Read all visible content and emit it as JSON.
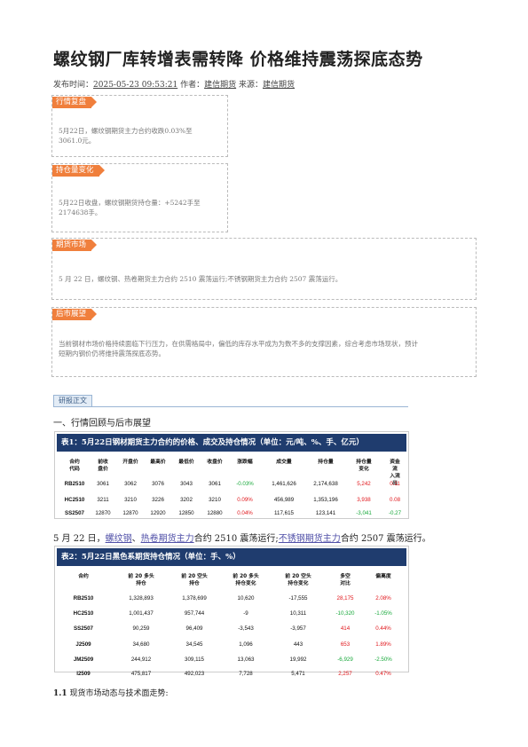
{
  "article": {
    "title": "螺纹钢厂库转增表需转降 价格维持震荡探底态势",
    "meta_prefix": "发布时间：",
    "publish_time": "2025-05-23 09:53:21",
    "author_label": "作者：",
    "author": "建信期货",
    "source_label": "来源：",
    "source": "建信期货"
  },
  "sections": [
    {
      "tag": "行情复盘",
      "lines": [
        "5月22日，螺纹钢期货主力合约收跌0.03%至",
        "3061.0元。"
      ]
    },
    {
      "tag": "持仓量变化",
      "lines": [
        "5月22日收盘，螺纹钢期货持仓量：+5242手至",
        "2174638手。"
      ]
    },
    {
      "tag": "期货市场",
      "lines": [
        "5 月 22 日，螺纹钢、热卷期货主力合约 2510 震荡运行;不锈钢期货主力合约 2507 震荡运行。"
      ]
    },
    {
      "tag": "后市展望",
      "lines": [
        "当前钢材市场价格持续面临下行压力，在供需格局中，偏低的库存水平成为为数不多的支撑因素，综合考虑市场现状，预计",
        "短期内钢价仍将维持震荡探底态势。"
      ]
    }
  ],
  "report_label": "研报正文",
  "heading_1": "一、行情回顾与后市展望",
  "table1": {
    "title": "表1：5月22日钢材期货主力合约的价格、成交及持仓情况（单位：元/吨、%、手、亿元）",
    "headers": [
      "合约\n代码",
      "前收\n盘价",
      "开盘价",
      "最高价",
      "最低价",
      "收盘价",
      "涨跌幅",
      "成交量",
      "持仓量",
      "持仓量\n变化",
      "资金流\n入流出"
    ],
    "rows": [
      [
        "RB2510",
        "3061",
        "3062",
        "3076",
        "3043",
        "3061",
        "-0.03%",
        "1,461,626",
        "2,174,638",
        "5,242",
        "0.11"
      ],
      [
        "HC2510",
        "3211",
        "3210",
        "3226",
        "3202",
        "3210",
        "0.09%",
        "456,989",
        "1,353,196",
        "3,938",
        "0.08"
      ],
      [
        "SS2507",
        "12870",
        "12870",
        "12920",
        "12850",
        "12880",
        "0.04%",
        "117,615",
        "123,141",
        "-3,041",
        "-0.27"
      ]
    ]
  },
  "sentence": {
    "prefix": "5 月 22 日，",
    "link1": "螺纹钢",
    "sep1": "、",
    "link2": "热卷期货主力",
    "mid": "合约 2510 震荡运行;",
    "link3": "不锈钢期货主力",
    "suffix": "合约 2507 震荡运行。"
  },
  "table2": {
    "title": "表2：5月22日黑色系期货持仓情况（单位：手、%）",
    "headers": [
      "合约",
      "前 20 多头\n持仓",
      "前 20 空头\n持仓",
      "前 20 多头\n持仓变化",
      "前 20 空头\n持仓变化",
      "多空\n对比",
      "偏离度"
    ],
    "rows": [
      [
        "RB2510",
        "1,328,893",
        "1,378,699",
        "10,620",
        "-17,555",
        "28,175",
        "2.08%"
      ],
      [
        "HC2510",
        "1,001,437",
        "957,744",
        "-9",
        "10,311",
        "-10,320",
        "-1.05%"
      ],
      [
        "SS2507",
        "90,259",
        "96,409",
        "-3,543",
        "-3,957",
        "414",
        "0.44%"
      ],
      [
        "J2509",
        "34,680",
        "34,545",
        "1,096",
        "443",
        "653",
        "1.89%"
      ],
      [
        "JM2509",
        "244,912",
        "309,115",
        "13,063",
        "19,992",
        "-6,929",
        "-2.50%"
      ],
      [
        "I2509",
        "475,817",
        "492,023",
        "7,728",
        "5,471",
        "2,257",
        "0.47%"
      ]
    ]
  },
  "heading_1_1_num": "1.1",
  "heading_1_1_text": "现货市场动态与技术面走势:",
  "colors": {
    "accent_orange": "#f07f3c",
    "table_header": "#1f3c6e",
    "up": "#e0161b",
    "down": "#17a83a"
  }
}
